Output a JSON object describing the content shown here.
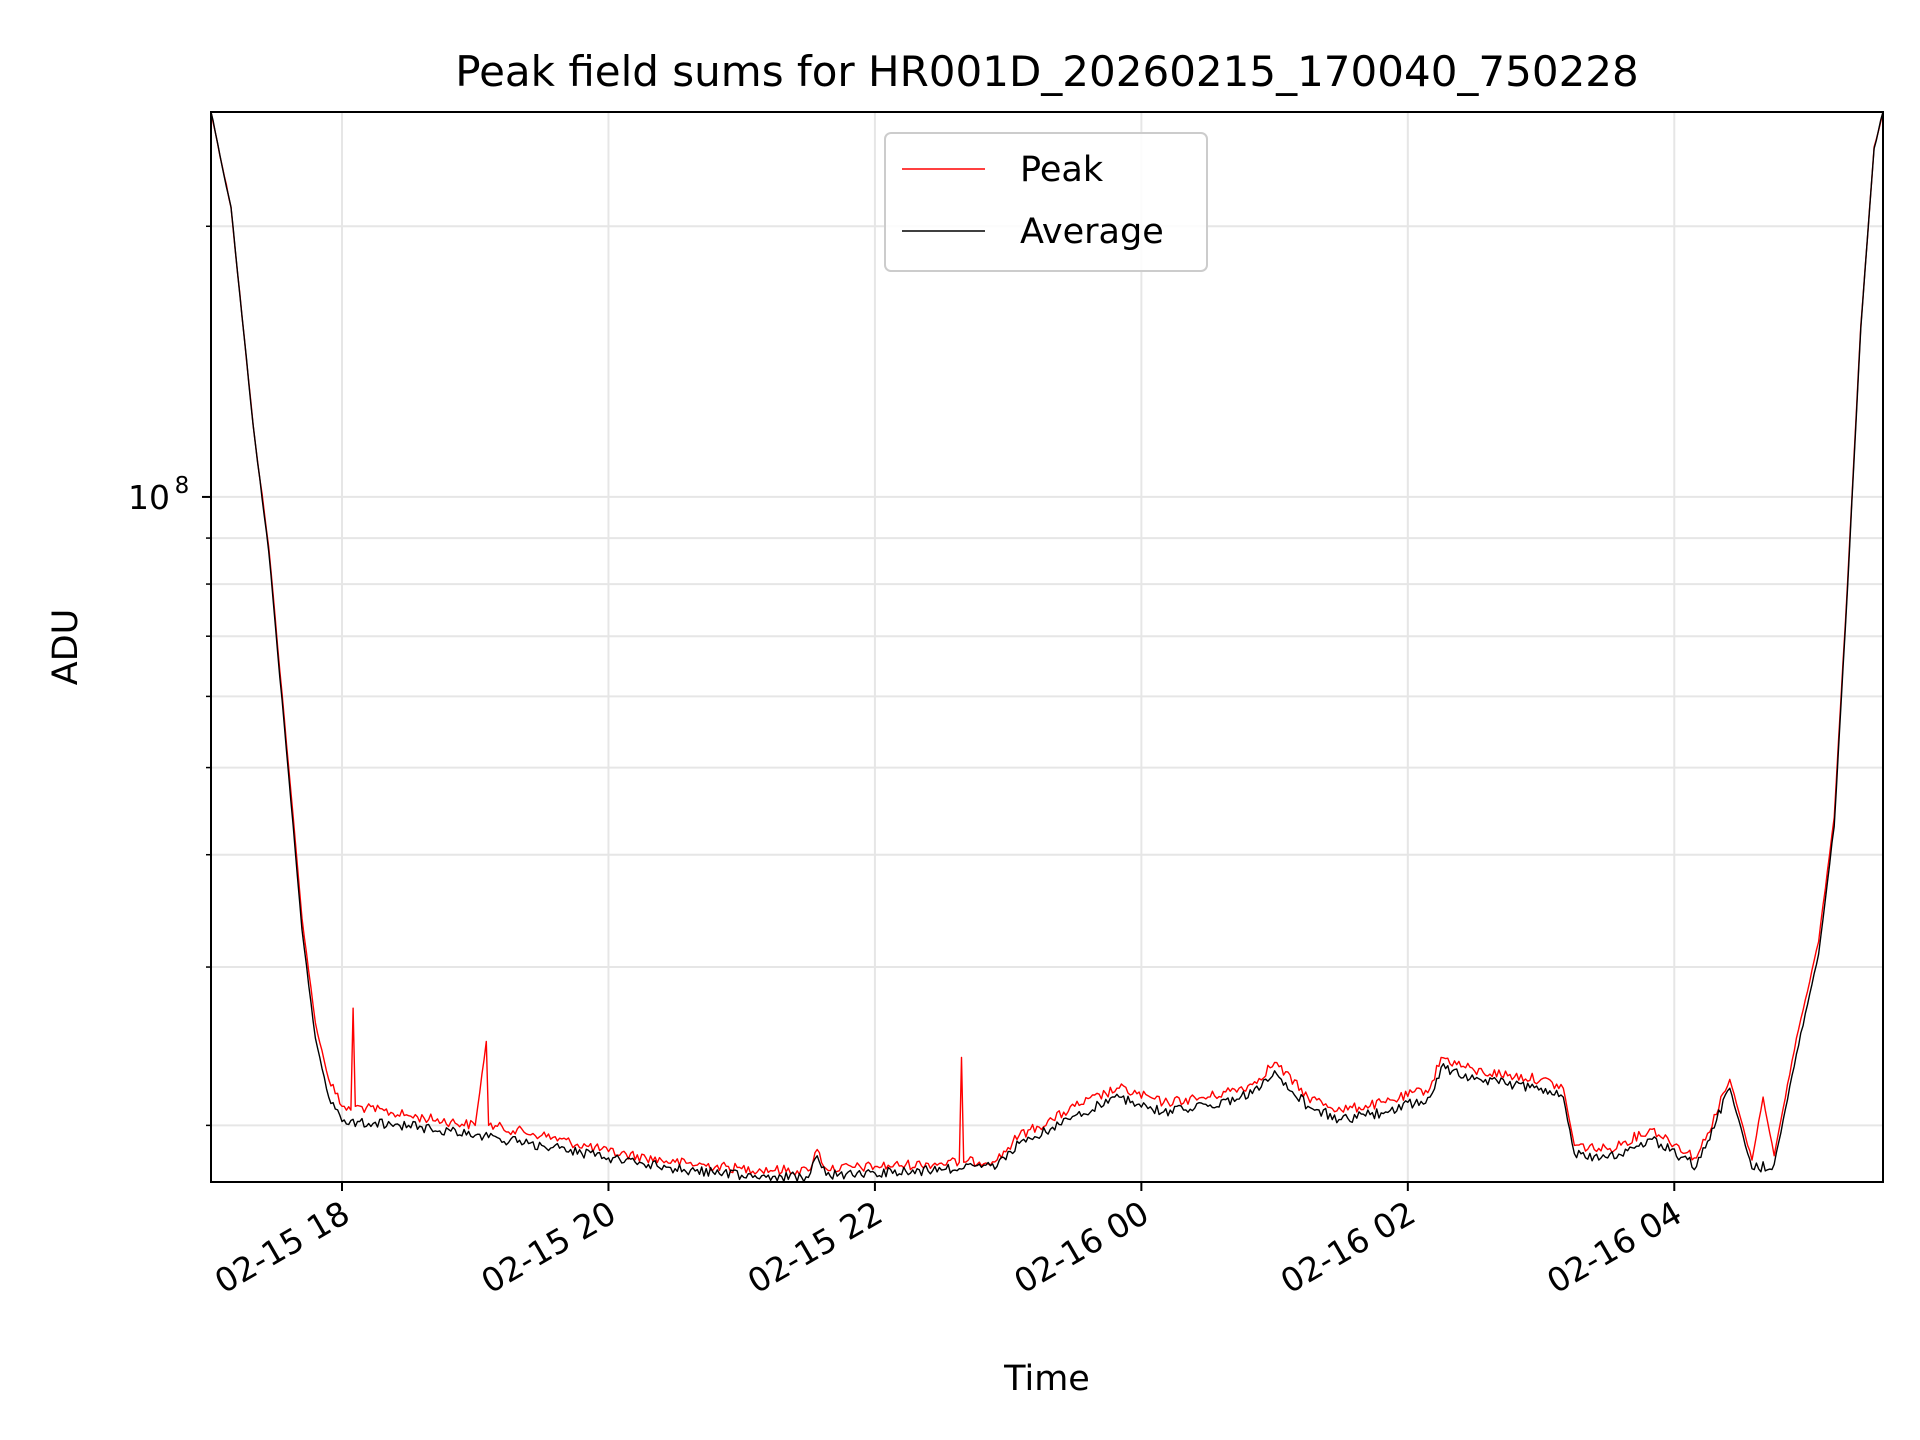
{
  "chart_data": {
    "type": "line",
    "title": "Peak field sums for HR001D_20260215_170040_750228",
    "xlabel": "Time",
    "ylabel": "ADU",
    "yscale": "log",
    "ylim": [
      17300000,
      268000000
    ],
    "xlim": [
      "2026-02-15 17:01",
      "2026-02-16 05:34"
    ],
    "grid": true,
    "legend": {
      "position": "top-center",
      "entries": [
        "Peak",
        "Average"
      ]
    },
    "x_tick_labels": [
      "02-15 18",
      "02-15 20",
      "02-15 22",
      "02-16 00",
      "02-16 02",
      "02-16 04"
    ],
    "y_tick_label": {
      "base": "10",
      "exponent": "8"
    },
    "series": [
      {
        "name": "Peak",
        "color": "#ff0000",
        "points": [
          [
            "2026-02-15 17:01",
            268000000
          ],
          [
            "2026-02-15 17:10",
            210000000
          ],
          [
            "2026-02-15 17:20",
            120000000
          ],
          [
            "2026-02-15 17:27",
            88000000
          ],
          [
            "2026-02-15 17:36",
            50000000
          ],
          [
            "2026-02-15 17:42",
            34000000
          ],
          [
            "2026-02-15 17:48",
            26000000
          ],
          [
            "2026-02-15 17:54",
            22500000
          ],
          [
            "2026-02-15 18:00",
            21000000
          ],
          [
            "2026-02-15 18:04",
            20800000
          ],
          [
            "2026-02-15 18:05",
            27000000
          ],
          [
            "2026-02-15 18:06",
            21000000
          ],
          [
            "2026-02-15 18:30",
            20500000
          ],
          [
            "2026-02-15 19:00",
            20000000
          ],
          [
            "2026-02-15 19:05",
            24800000
          ],
          [
            "2026-02-15 19:06",
            20000000
          ],
          [
            "2026-02-15 19:30",
            19500000
          ],
          [
            "2026-02-15 20:00",
            18700000
          ],
          [
            "2026-02-15 20:30",
            18200000
          ],
          [
            "2026-02-15 21:00",
            17900000
          ],
          [
            "2026-02-15 21:30",
            17800000
          ],
          [
            "2026-02-15 21:34",
            18800000
          ],
          [
            "2026-02-15 21:38",
            17900000
          ],
          [
            "2026-02-15 22:00",
            18000000
          ],
          [
            "2026-02-15 22:38",
            18200000
          ],
          [
            "2026-02-15 22:39",
            23800000
          ],
          [
            "2026-02-15 22:40",
            18200000
          ],
          [
            "2026-02-15 22:55",
            18300000
          ],
          [
            "2026-02-15 23:05",
            19500000
          ],
          [
            "2026-02-15 23:20",
            20300000
          ],
          [
            "2026-02-15 23:30",
            21000000
          ],
          [
            "2026-02-15 23:50",
            22000000
          ],
          [
            "2026-02-16 00:10",
            21200000
          ],
          [
            "2026-02-16 00:30",
            21500000
          ],
          [
            "2026-02-16 00:50",
            22200000
          ],
          [
            "2026-02-16 01:00",
            23500000
          ],
          [
            "2026-02-16 01:15",
            21500000
          ],
          [
            "2026-02-16 01:30",
            20800000
          ],
          [
            "2026-02-16 01:50",
            21200000
          ],
          [
            "2026-02-16 02:10",
            22000000
          ],
          [
            "2026-02-16 02:15",
            23800000
          ],
          [
            "2026-02-16 02:30",
            23000000
          ],
          [
            "2026-02-16 03:00",
            22500000
          ],
          [
            "2026-02-16 03:10",
            22000000
          ],
          [
            "2026-02-16 03:15",
            19000000
          ],
          [
            "2026-02-16 03:30",
            18800000
          ],
          [
            "2026-02-16 03:50",
            19800000
          ],
          [
            "2026-02-16 04:10",
            18400000
          ],
          [
            "2026-02-16 04:15",
            19600000
          ],
          [
            "2026-02-16 04:25",
            22500000
          ],
          [
            "2026-02-16 04:35",
            18300000
          ],
          [
            "2026-02-16 04:40",
            21500000
          ],
          [
            "2026-02-16 04:45",
            18500000
          ],
          [
            "2026-02-16 04:55",
            25000000
          ],
          [
            "2026-02-16 05:05",
            32000000
          ],
          [
            "2026-02-16 05:12",
            44000000
          ],
          [
            "2026-02-16 05:18",
            80000000
          ],
          [
            "2026-02-16 05:24",
            155000000
          ],
          [
            "2026-02-16 05:30",
            245000000
          ],
          [
            "2026-02-16 05:34",
            268000000
          ]
        ]
      },
      {
        "name": "Average",
        "color": "#000000",
        "points": [
          [
            "2026-02-15 17:01",
            268000000
          ],
          [
            "2026-02-15 17:10",
            210000000
          ],
          [
            "2026-02-15 17:20",
            120000000
          ],
          [
            "2026-02-15 17:27",
            87000000
          ],
          [
            "2026-02-15 17:36",
            49000000
          ],
          [
            "2026-02-15 17:42",
            33000000
          ],
          [
            "2026-02-15 17:48",
            25000000
          ],
          [
            "2026-02-15 17:54",
            21500000
          ],
          [
            "2026-02-15 18:00",
            20200000
          ],
          [
            "2026-02-15 18:30",
            20000000
          ],
          [
            "2026-02-15 19:00",
            19500000
          ],
          [
            "2026-02-15 19:30",
            19000000
          ],
          [
            "2026-02-15 20:00",
            18400000
          ],
          [
            "2026-02-15 20:30",
            17900000
          ],
          [
            "2026-02-15 21:00",
            17600000
          ],
          [
            "2026-02-15 21:30",
            17500000
          ],
          [
            "2026-02-15 21:34",
            18500000
          ],
          [
            "2026-02-15 21:38",
            17600000
          ],
          [
            "2026-02-15 22:00",
            17700000
          ],
          [
            "2026-02-15 22:38",
            17900000
          ],
          [
            "2026-02-15 22:55",
            18000000
          ],
          [
            "2026-02-15 23:05",
            19100000
          ],
          [
            "2026-02-15 23:20",
            19900000
          ],
          [
            "2026-02-15 23:30",
            20500000
          ],
          [
            "2026-02-15 23:50",
            21500000
          ],
          [
            "2026-02-16 00:10",
            20700000
          ],
          [
            "2026-02-16 00:30",
            21000000
          ],
          [
            "2026-02-16 00:50",
            21700000
          ],
          [
            "2026-02-16 01:00",
            23000000
          ],
          [
            "2026-02-16 01:15",
            21000000
          ],
          [
            "2026-02-16 01:30",
            20300000
          ],
          [
            "2026-02-16 01:50",
            20700000
          ],
          [
            "2026-02-16 02:10",
            21500000
          ],
          [
            "2026-02-16 02:15",
            23200000
          ],
          [
            "2026-02-16 02:30",
            22500000
          ],
          [
            "2026-02-16 03:00",
            22000000
          ],
          [
            "2026-02-16 03:10",
            21500000
          ],
          [
            "2026-02-16 03:15",
            18600000
          ],
          [
            "2026-02-16 03:30",
            18400000
          ],
          [
            "2026-02-16 03:50",
            19300000
          ],
          [
            "2026-02-16 04:10",
            18000000
          ],
          [
            "2026-02-16 04:15",
            19200000
          ],
          [
            "2026-02-16 04:25",
            22000000
          ],
          [
            "2026-02-16 04:35",
            17900000
          ],
          [
            "2026-02-16 04:45",
            18100000
          ],
          [
            "2026-02-16 04:55",
            24000000
          ],
          [
            "2026-02-16 05:05",
            31000000
          ],
          [
            "2026-02-16 05:12",
            43000000
          ],
          [
            "2026-02-16 05:18",
            79000000
          ],
          [
            "2026-02-16 05:24",
            154000000
          ],
          [
            "2026-02-16 05:30",
            244000000
          ],
          [
            "2026-02-16 05:34",
            268000000
          ]
        ]
      }
    ]
  }
}
